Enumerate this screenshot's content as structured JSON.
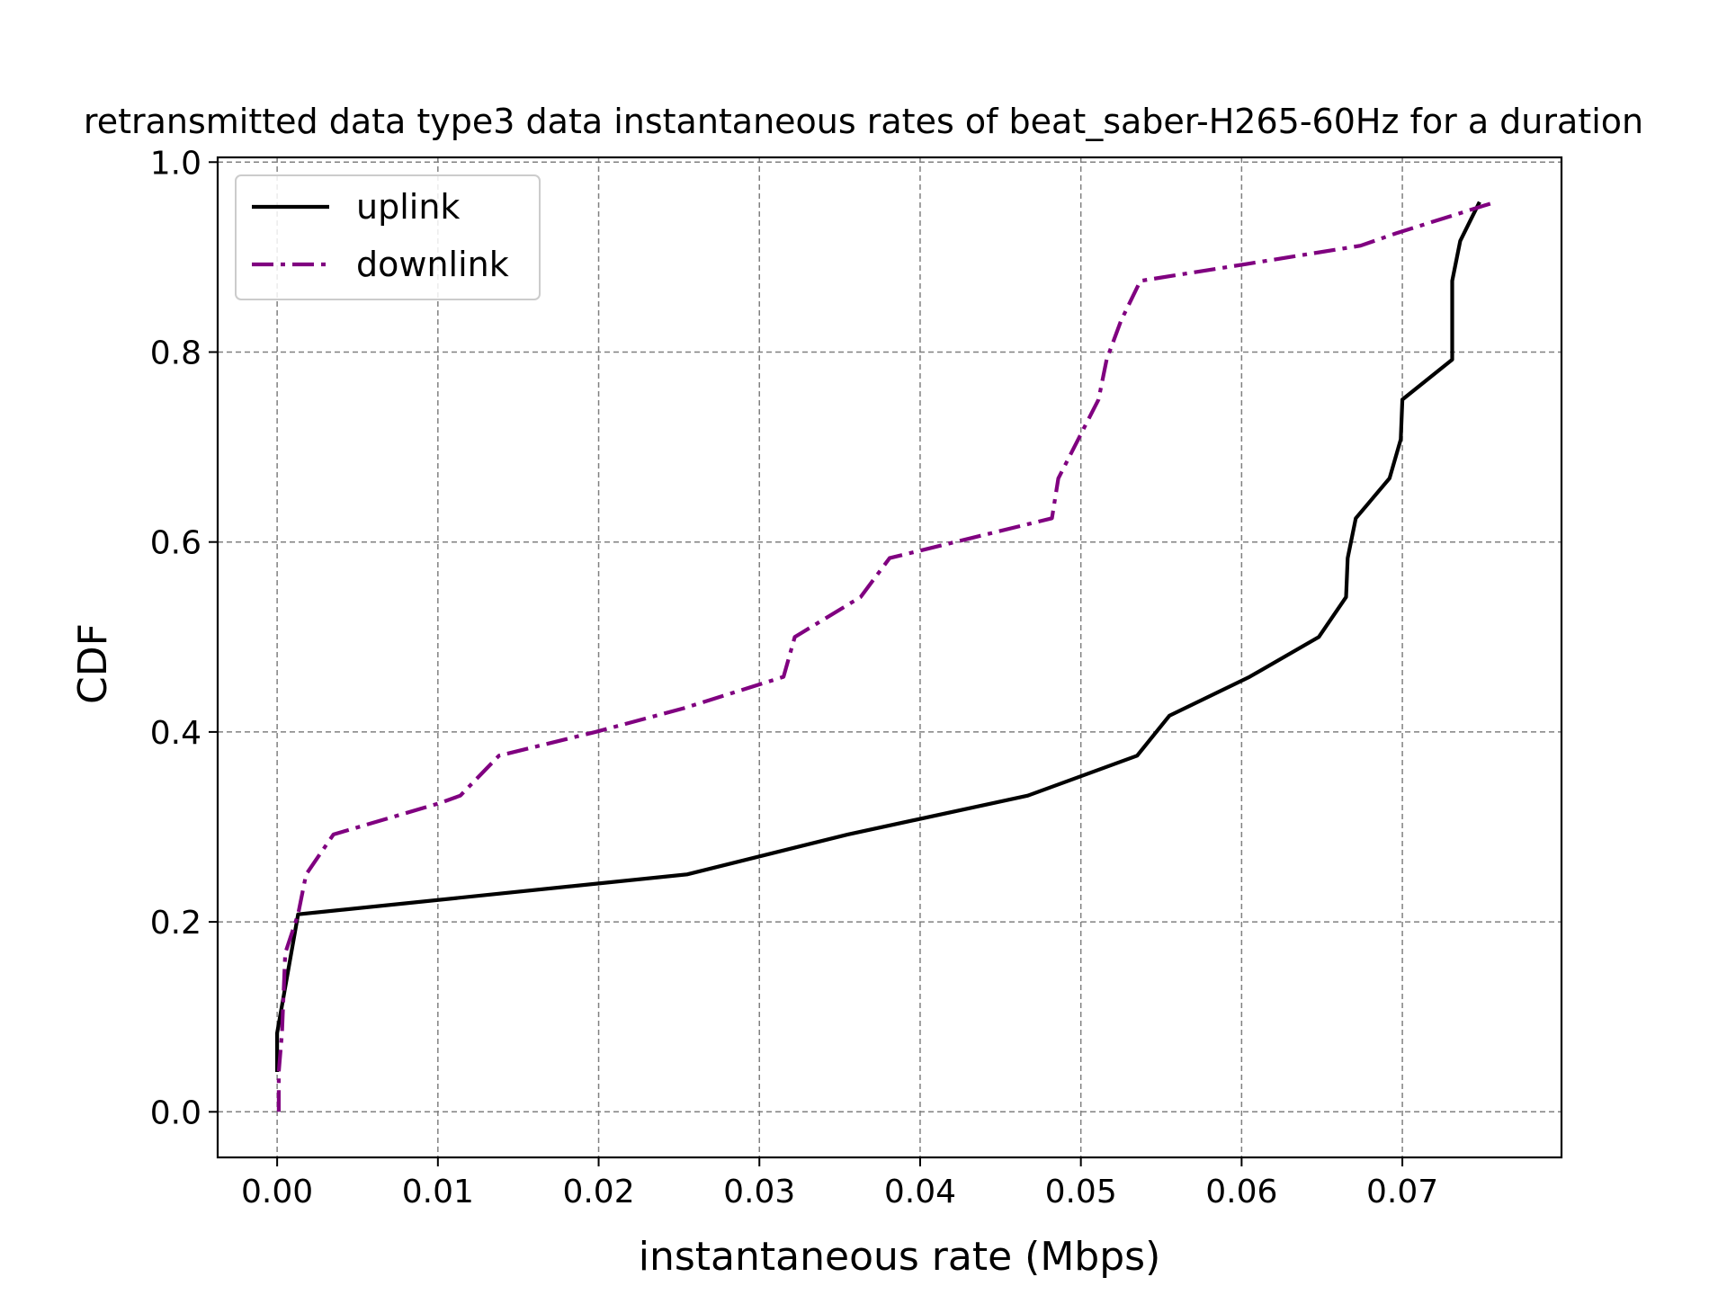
{
  "chart_data": {
    "type": "line",
    "title": "retransmitted data type3 data instantaneous rates of beat_saber-H265-60Hz for a duration",
    "xlabel": "instantaneous rate (Mbps)",
    "ylabel": "CDF",
    "xlim": [
      -0.0037,
      0.0799
    ],
    "ylim": [
      -0.048,
      1.005
    ],
    "xticks": [
      0.0,
      0.01,
      0.02,
      0.03,
      0.04,
      0.05,
      0.06,
      0.07
    ],
    "xtick_labels": [
      "0.00",
      "0.01",
      "0.02",
      "0.03",
      "0.04",
      "0.05",
      "0.06",
      "0.07"
    ],
    "yticks": [
      0.0,
      0.2,
      0.4,
      0.6,
      0.8,
      1.0
    ],
    "ytick_labels": [
      "0.0",
      "0.2",
      "0.4",
      "0.6",
      "0.8",
      "1.0"
    ],
    "grid": true,
    "legend_position": "upper left",
    "series": [
      {
        "name": "uplink",
        "color": "#000000",
        "style": "solid",
        "points": [
          [
            0.0,
            0.042
          ],
          [
            0.0,
            0.083
          ],
          [
            0.0013,
            0.208
          ],
          [
            0.0255,
            0.25
          ],
          [
            0.0355,
            0.292
          ],
          [
            0.0467,
            0.333
          ],
          [
            0.0535,
            0.375
          ],
          [
            0.0555,
            0.417
          ],
          [
            0.0605,
            0.458
          ],
          [
            0.0648,
            0.5
          ],
          [
            0.0665,
            0.542
          ],
          [
            0.0666,
            0.583
          ],
          [
            0.0671,
            0.625
          ],
          [
            0.0692,
            0.667
          ],
          [
            0.0699,
            0.708
          ],
          [
            0.07,
            0.75
          ],
          [
            0.0731,
            0.792
          ],
          [
            0.0731,
            0.833
          ],
          [
            0.0731,
            0.875
          ],
          [
            0.0736,
            0.917
          ],
          [
            0.0748,
            0.958
          ]
        ]
      },
      {
        "name": "downlink",
        "color": "#800080",
        "style": "dashdot",
        "points": [
          [
            0.0001,
            0.0
          ],
          [
            0.0001,
            0.042
          ],
          [
            0.0003,
            0.083
          ],
          [
            0.0004,
            0.125
          ],
          [
            0.0005,
            0.167
          ],
          [
            0.0013,
            0.208
          ],
          [
            0.0018,
            0.25
          ],
          [
            0.0035,
            0.292
          ],
          [
            0.0101,
            0.325
          ],
          [
            0.0114,
            0.333
          ],
          [
            0.0138,
            0.375
          ],
          [
            0.0198,
            0.4
          ],
          [
            0.0253,
            0.425
          ],
          [
            0.0315,
            0.458
          ],
          [
            0.0322,
            0.5
          ],
          [
            0.0363,
            0.542
          ],
          [
            0.0381,
            0.583
          ],
          [
            0.0482,
            0.625
          ],
          [
            0.0486,
            0.667
          ],
          [
            0.0511,
            0.75
          ],
          [
            0.0516,
            0.792
          ],
          [
            0.0525,
            0.833
          ],
          [
            0.0537,
            0.875
          ],
          [
            0.0604,
            0.893
          ],
          [
            0.0674,
            0.912
          ],
          [
            0.0696,
            0.925
          ],
          [
            0.0758,
            0.958
          ]
        ]
      }
    ]
  }
}
